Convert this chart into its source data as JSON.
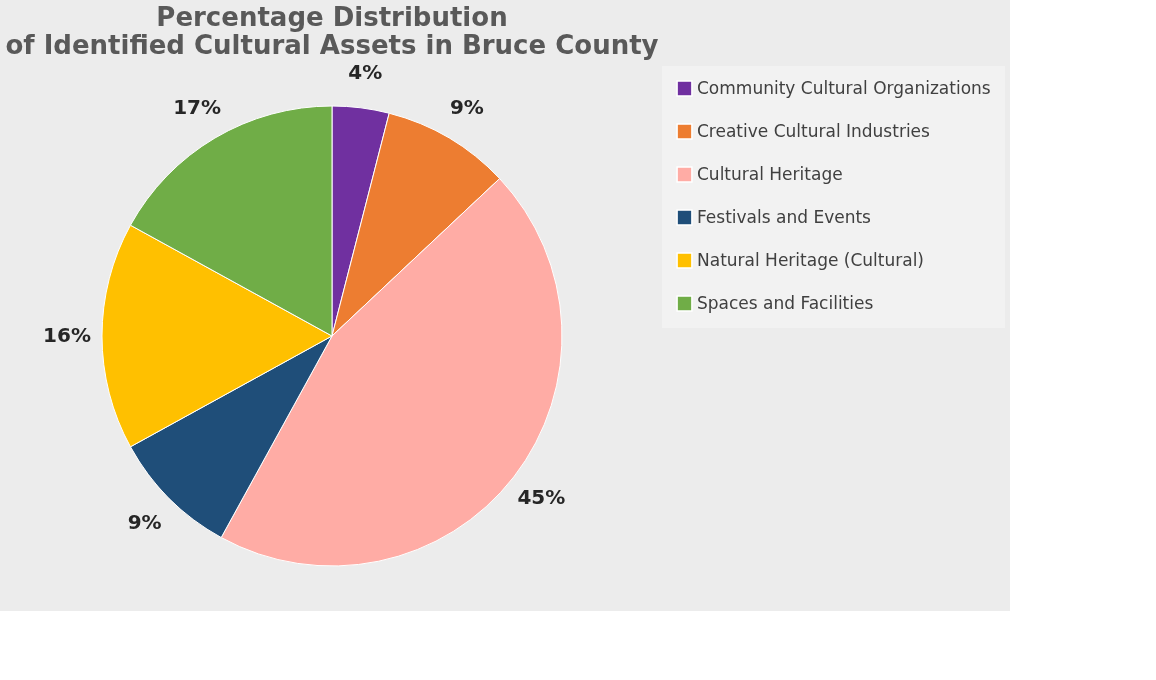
{
  "chart_data": {
    "type": "pie",
    "title": [
      "Percentage Distribution",
      "of Identified Cultural Assets in Bruce County"
    ],
    "categories": [
      "Community Cultural Organizations",
      "Creative Cultural Industries",
      "Cultural Heritage",
      "Festivals and Events",
      "Natural Heritage (Cultural)",
      "Spaces and Facilities"
    ],
    "values": [
      4,
      9,
      45,
      9,
      16,
      17
    ],
    "colors": [
      "#7030a0",
      "#ed7d31",
      "#ffaca5",
      "#1f4e79",
      "#ffc000",
      "#70ad47"
    ],
    "value_labels": [
      "4%",
      "9%",
      "45%",
      "9%",
      "16%",
      "17%"
    ],
    "legend": "right"
  }
}
